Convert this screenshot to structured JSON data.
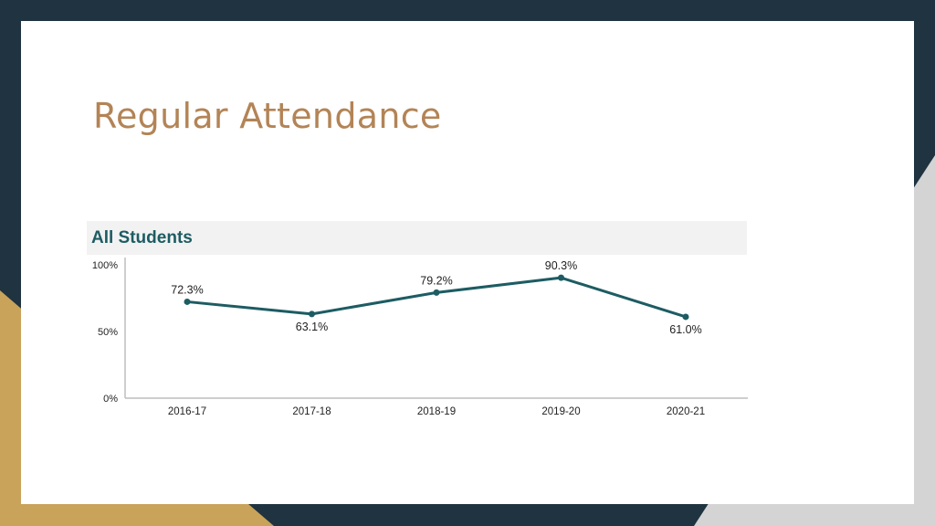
{
  "slide": {
    "title": "Regular Attendance"
  },
  "colors": {
    "background_dark": "#1f3340",
    "accent_gold": "#c9a35a",
    "accent_gray": "#d4d4d4",
    "title_color": "#b38456",
    "line_color": "#1d5c63",
    "header_bg": "#f2f2f2"
  },
  "chart_data": {
    "type": "line",
    "header": "All Students",
    "categories": [
      "2016-17",
      "2017-18",
      "2018-19",
      "2019-20",
      "2020-21"
    ],
    "values": [
      72.3,
      63.1,
      79.2,
      90.3,
      61.0
    ],
    "data_labels": [
      "72.3%",
      "63.1%",
      "79.2%",
      "90.3%",
      "61.0%"
    ],
    "y_ticks": [
      {
        "value": 100,
        "label": "100%"
      },
      {
        "value": 50,
        "label": "50%"
      },
      {
        "value": 0,
        "label": "0%"
      }
    ],
    "ylim": [
      0,
      100
    ],
    "grid": false,
    "legend": "none"
  }
}
